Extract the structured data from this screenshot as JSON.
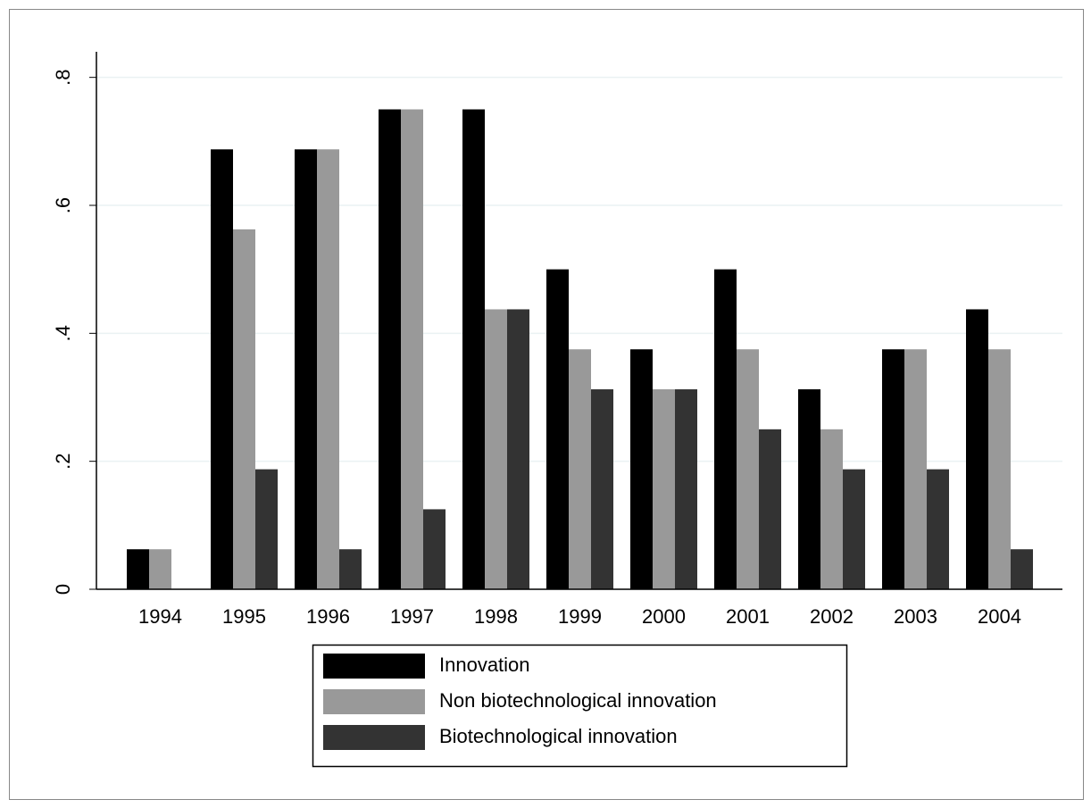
{
  "chart_data": {
    "type": "bar",
    "categories": [
      "1994",
      "1995",
      "1996",
      "1997",
      "1998",
      "1999",
      "2000",
      "2001",
      "2002",
      "2003",
      "2004"
    ],
    "series": [
      {
        "name": "Innovation",
        "color": "#000000",
        "values": [
          0.0625,
          0.6875,
          0.6875,
          0.75,
          0.75,
          0.5,
          0.375,
          0.5,
          0.3125,
          0.375,
          0.4375
        ]
      },
      {
        "name": "Non biotechnological innovation",
        "color": "#999999",
        "values": [
          0.0625,
          0.5625,
          0.6875,
          0.75,
          0.4375,
          0.375,
          0.3125,
          0.375,
          0.25,
          0.375,
          0.375
        ]
      },
      {
        "name": "Biotechnological innovation",
        "color": "#333333",
        "values": [
          0,
          0.1875,
          0.0625,
          0.125,
          0.4375,
          0.3125,
          0.3125,
          0.25,
          0.1875,
          0.1875,
          0.0625
        ]
      }
    ],
    "ylim": [
      0,
      0.84
    ],
    "yticks": [
      0,
      {
        "value": 0.2,
        "label": ".2"
      },
      {
        "value": 0.4,
        "label": ".4"
      },
      {
        "value": 0.6,
        "label": ".6"
      },
      {
        "value": 0.8,
        "label": ".8"
      }
    ],
    "grid": true,
    "legend": "bottom"
  }
}
